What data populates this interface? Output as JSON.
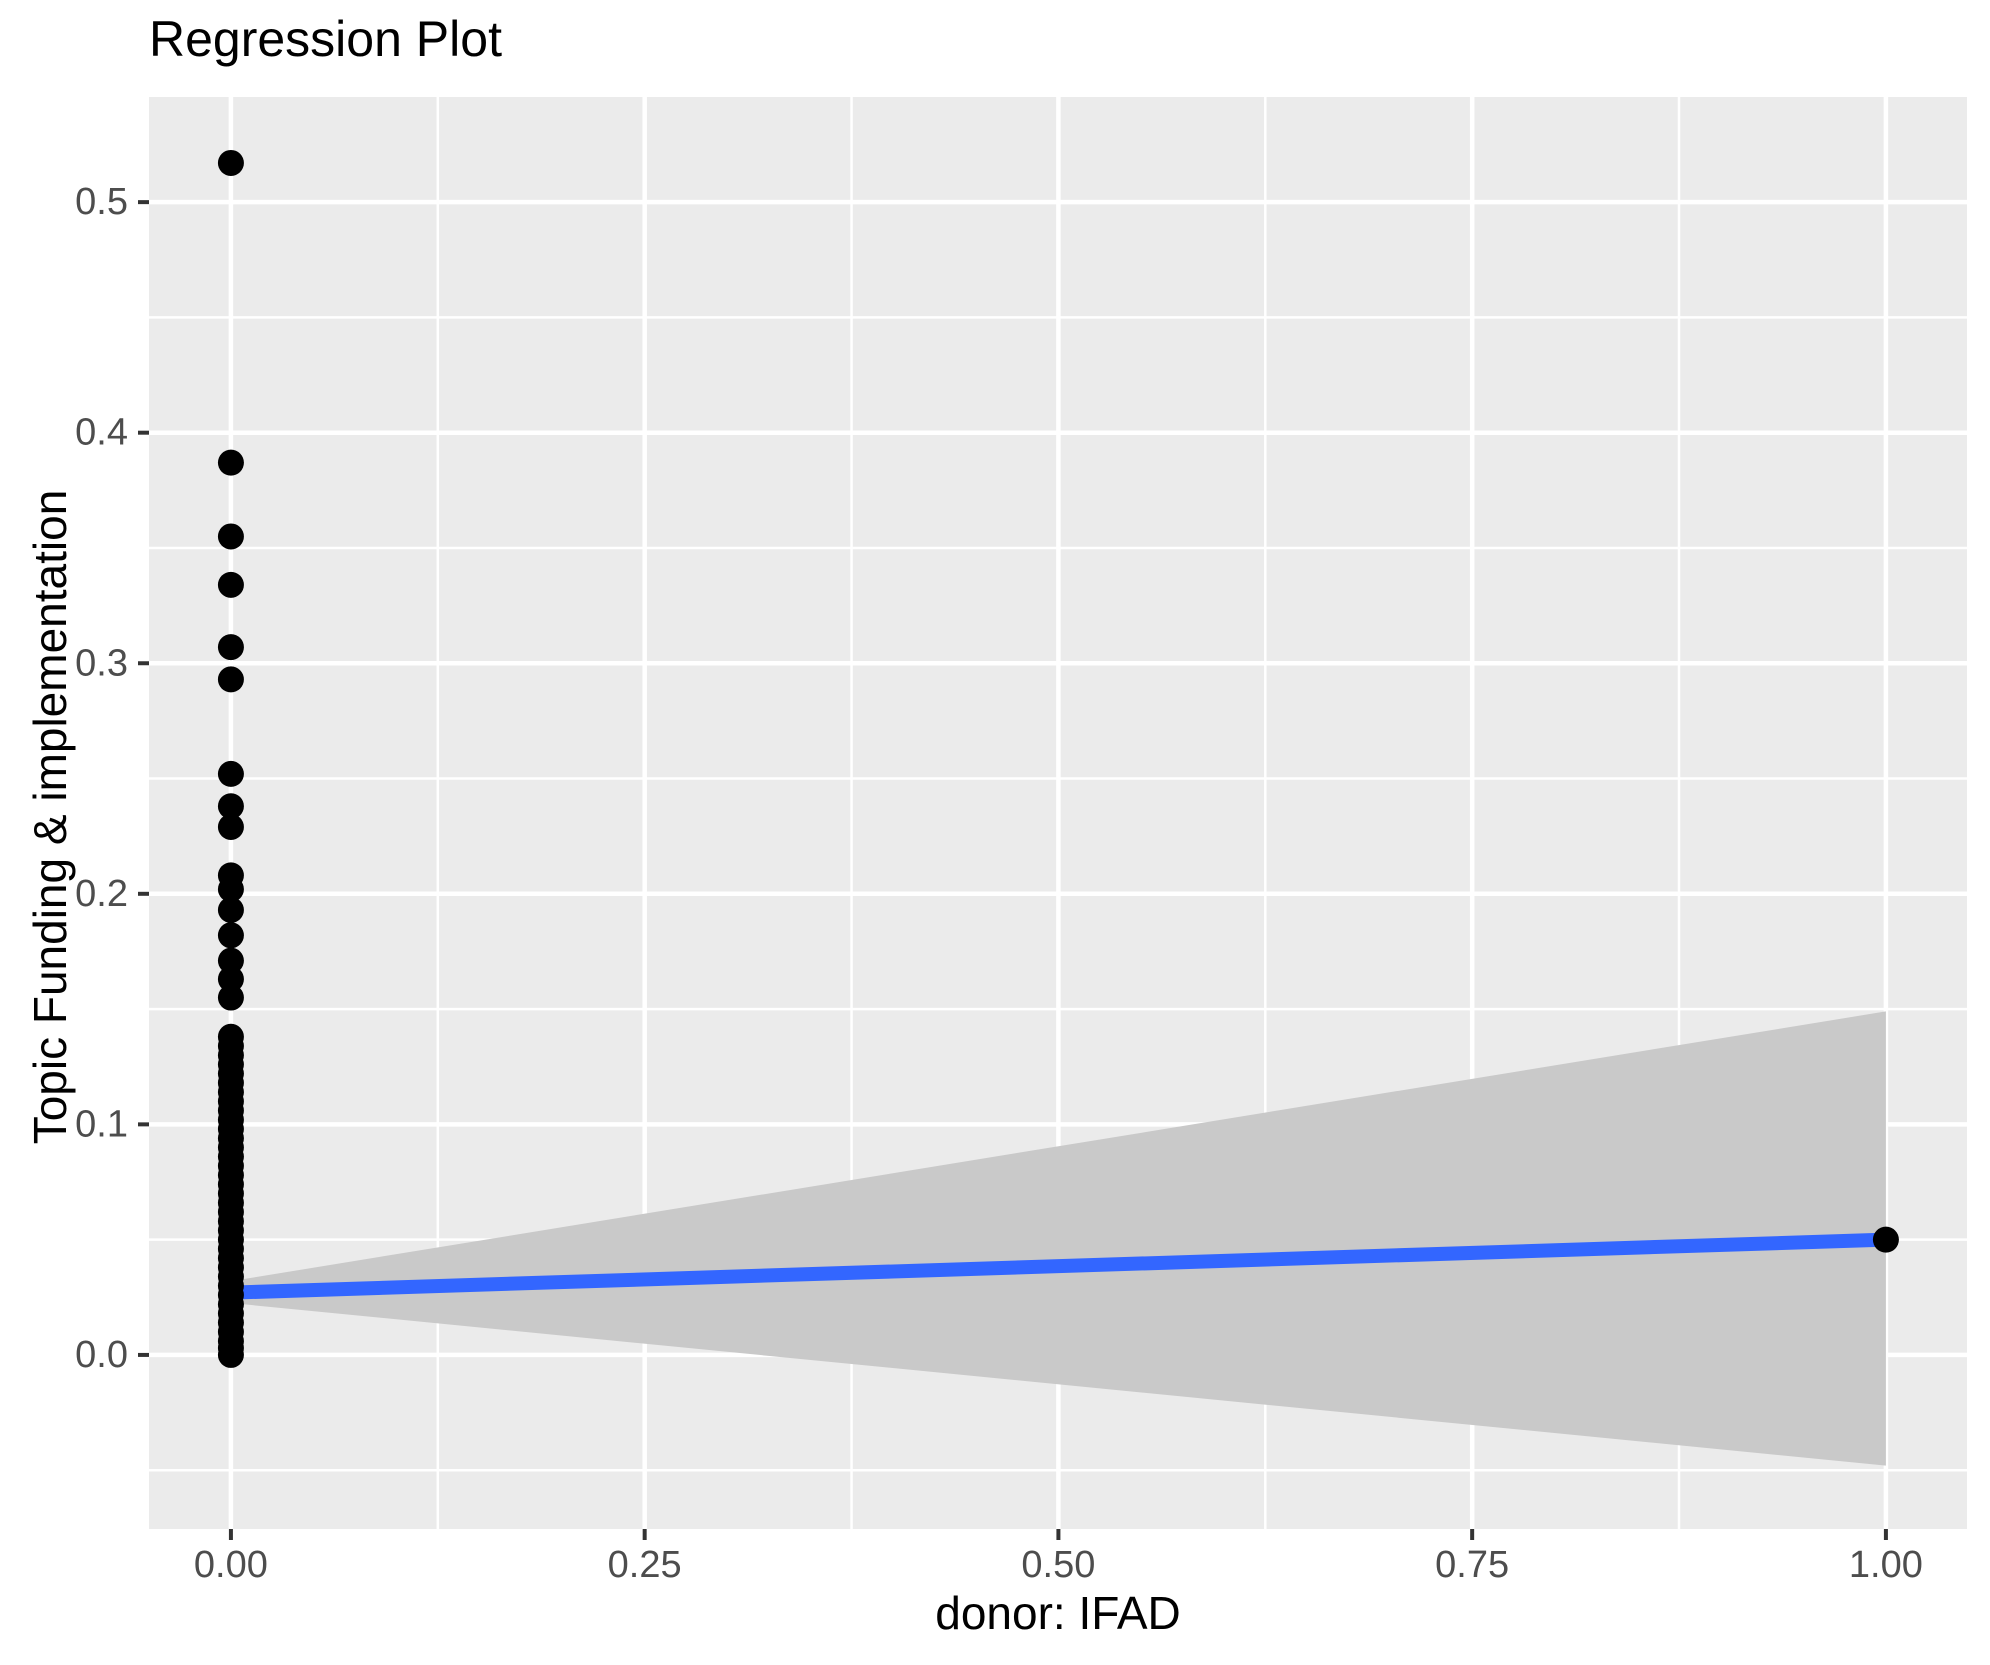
{
  "title": "Regression Plot",
  "chart_data": {
    "type": "scatter",
    "title": "Regression Plot",
    "xlabel": "donor: IFAD",
    "ylabel": "Topic Funding & implementation",
    "xlim": [
      -0.0495,
      1.049
    ],
    "ylim": [
      -0.0755,
      0.5456
    ],
    "grid": "on",
    "x_major_ticks": [
      {
        "v": 0.0,
        "label": "0.00"
      },
      {
        "v": 0.25,
        "label": "0.25"
      },
      {
        "v": 0.5,
        "label": "0.50"
      },
      {
        "v": 0.75,
        "label": "0.75"
      },
      {
        "v": 1.0,
        "label": "1.00"
      }
    ],
    "x_minor_ticks": [
      0.125,
      0.375,
      0.625,
      0.875
    ],
    "y_major_ticks": [
      {
        "v": 0.0,
        "label": "0.0"
      },
      {
        "v": 0.1,
        "label": "0.1"
      },
      {
        "v": 0.2,
        "label": "0.2"
      },
      {
        "v": 0.3,
        "label": "0.3"
      },
      {
        "v": 0.4,
        "label": "0.4"
      },
      {
        "v": 0.5,
        "label": "0.5"
      }
    ],
    "y_minor_ticks": [
      -0.05,
      0.05,
      0.15,
      0.25,
      0.35,
      0.45
    ],
    "series": [
      {
        "name": "observations at x = 0",
        "x": 0,
        "y_values": [
          0.517,
          0.387,
          0.355,
          0.334,
          0.307,
          0.293,
          0.252,
          0.238,
          0.229,
          0.208,
          0.202,
          0.193,
          0.182,
          0.171,
          0.163,
          0.155,
          0.138,
          0.134,
          0.13,
          0.126,
          0.122,
          0.118,
          0.114,
          0.11,
          0.106,
          0.102,
          0.098,
          0.094,
          0.09,
          0.086,
          0.082,
          0.078,
          0.074,
          0.07,
          0.066,
          0.062,
          0.058,
          0.054,
          0.05,
          0.046,
          0.042,
          0.038,
          0.034,
          0.03,
          0.026,
          0.022,
          0.018,
          0.014,
          0.01,
          0.006,
          0.003,
          0.0
        ]
      },
      {
        "name": "observation at x = 1",
        "x": 1,
        "y_values": [
          0.05
        ]
      }
    ],
    "regression_line": {
      "x": [
        0,
        1
      ],
      "y": [
        0.027,
        0.05
      ]
    },
    "confidence_band": {
      "x0_lower": 0.0225,
      "x0_upper": 0.032,
      "x1_lower": -0.048,
      "x1_upper": 0.149
    },
    "colors": {
      "panel_background": "#EBEBEB",
      "gridline": "#FFFFFF",
      "confidence_band": "#C9C9C9",
      "regression_line": "#3366FF",
      "point": "#000000",
      "tick_label": "#4D4D4D",
      "tick_mark": "#333333",
      "title_text": "#000000"
    }
  }
}
